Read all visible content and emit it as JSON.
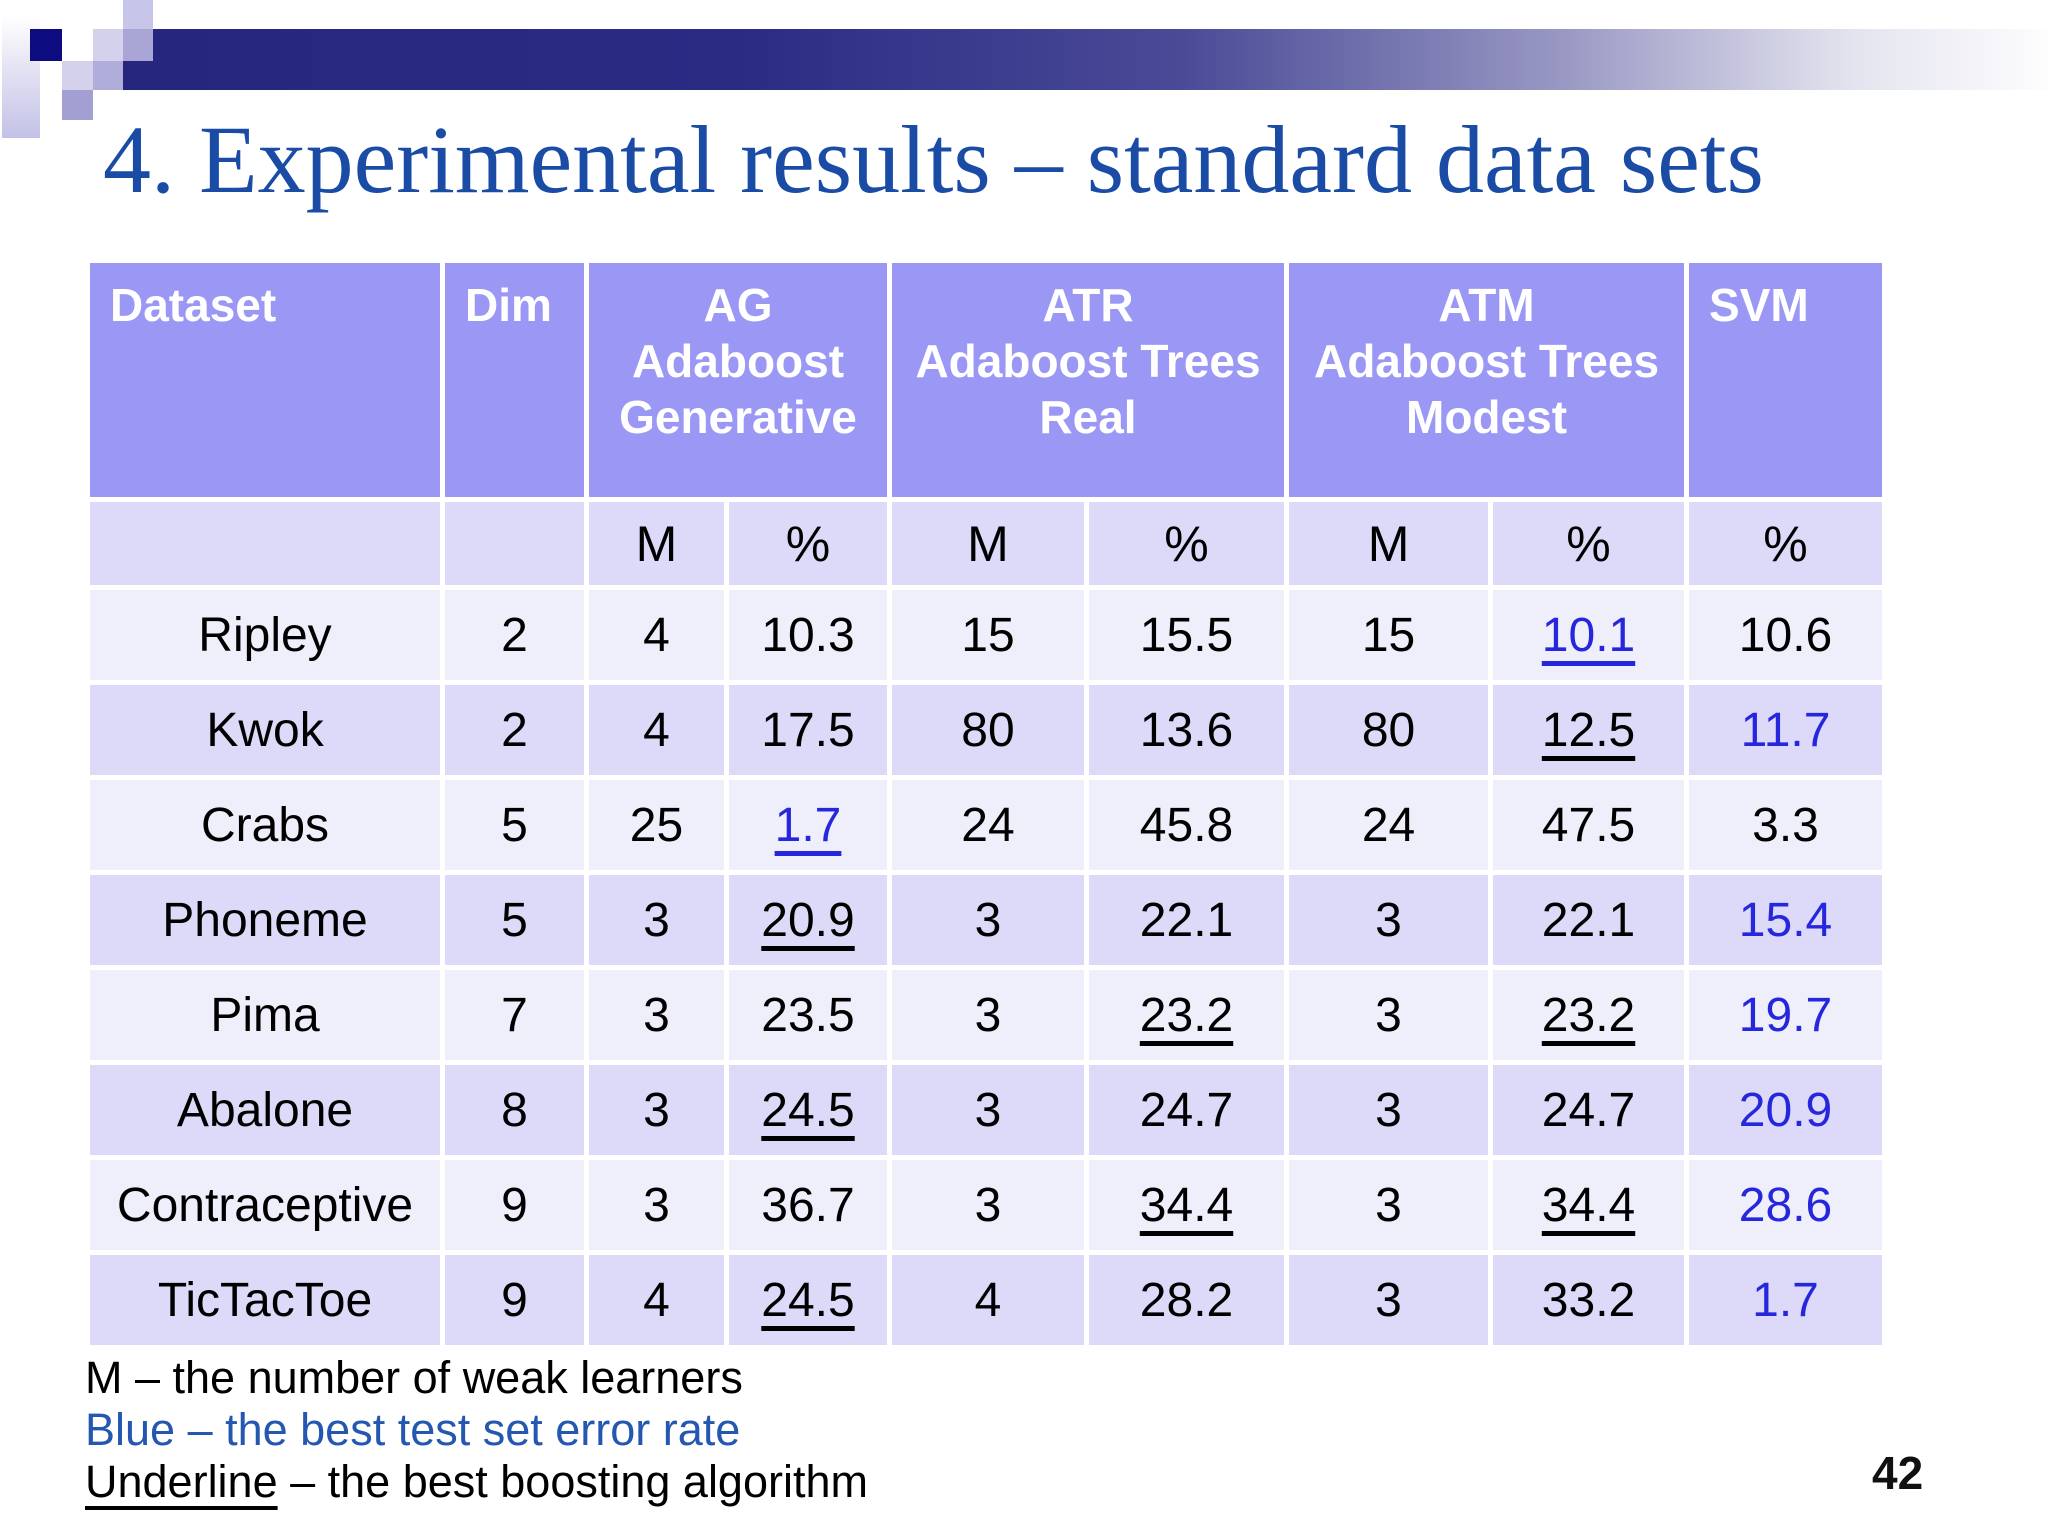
{
  "title": "4. Experimental results – standard data sets",
  "page_number": "42",
  "colors": {
    "title_blue": "#1a4ca6",
    "header_bg": "#9b98f5",
    "row_light": "#efeefb",
    "row_dark": "#dcdaf8",
    "best_value_blue": "#2626dd",
    "legend_blue": "#2457b0",
    "banner_navy": "#26267e"
  },
  "table": {
    "col_dataset": "Dataset",
    "col_dim": "Dim",
    "groups": [
      {
        "abbr": "AG",
        "name": "Adaboost Generative"
      },
      {
        "abbr": "ATR",
        "name": "Adaboost Trees Real"
      },
      {
        "abbr": "ATM",
        "name": "Adaboost Trees Modest"
      }
    ],
    "col_svm": "SVM",
    "sub_m": "M",
    "sub_pct": "%",
    "rows": [
      {
        "cells": [
          {
            "v": "Ripley"
          },
          {
            "v": "2"
          },
          {
            "v": "4"
          },
          {
            "v": "10.3"
          },
          {
            "v": "15"
          },
          {
            "v": "15.5"
          },
          {
            "v": "15"
          },
          {
            "v": "10.1",
            "blue": true,
            "underline": true
          },
          {
            "v": "10.6"
          }
        ]
      },
      {
        "cells": [
          {
            "v": "Kwok"
          },
          {
            "v": "2"
          },
          {
            "v": "4"
          },
          {
            "v": "17.5"
          },
          {
            "v": "80"
          },
          {
            "v": "13.6"
          },
          {
            "v": "80"
          },
          {
            "v": "12.5",
            "underline": true
          },
          {
            "v": "11.7",
            "blue": true
          }
        ]
      },
      {
        "cells": [
          {
            "v": "Crabs"
          },
          {
            "v": "5"
          },
          {
            "v": "25"
          },
          {
            "v": "1.7",
            "blue": true,
            "underline": true
          },
          {
            "v": "24"
          },
          {
            "v": "45.8"
          },
          {
            "v": "24"
          },
          {
            "v": "47.5"
          },
          {
            "v": "3.3"
          }
        ]
      },
      {
        "cells": [
          {
            "v": "Phoneme"
          },
          {
            "v": "5"
          },
          {
            "v": "3"
          },
          {
            "v": "20.9",
            "underline": true
          },
          {
            "v": "3"
          },
          {
            "v": "22.1"
          },
          {
            "v": "3"
          },
          {
            "v": "22.1"
          },
          {
            "v": "15.4",
            "blue": true
          }
        ]
      },
      {
        "cells": [
          {
            "v": "Pima"
          },
          {
            "v": "7"
          },
          {
            "v": "3"
          },
          {
            "v": "23.5"
          },
          {
            "v": "3"
          },
          {
            "v": "23.2",
            "underline": true
          },
          {
            "v": "3"
          },
          {
            "v": "23.2",
            "underline": true
          },
          {
            "v": "19.7",
            "blue": true
          }
        ]
      },
      {
        "cells": [
          {
            "v": "Abalone"
          },
          {
            "v": "8"
          },
          {
            "v": "3"
          },
          {
            "v": "24.5",
            "underline": true
          },
          {
            "v": "3"
          },
          {
            "v": "24.7"
          },
          {
            "v": "3"
          },
          {
            "v": "24.7"
          },
          {
            "v": "20.9",
            "blue": true
          }
        ]
      },
      {
        "cells": [
          {
            "v": "Contraceptive"
          },
          {
            "v": "9"
          },
          {
            "v": "3"
          },
          {
            "v": "36.7"
          },
          {
            "v": "3"
          },
          {
            "v": "34.4",
            "underline": true
          },
          {
            "v": "3"
          },
          {
            "v": "34.4",
            "underline": true
          },
          {
            "v": "28.6",
            "blue": true
          }
        ]
      },
      {
        "cells": [
          {
            "v": "TicTacToe"
          },
          {
            "v": "9"
          },
          {
            "v": "4"
          },
          {
            "v": "24.5",
            "underline": true
          },
          {
            "v": "4"
          },
          {
            "v": "28.2"
          },
          {
            "v": "3"
          },
          {
            "v": "33.2"
          },
          {
            "v": "1.7",
            "blue": true
          }
        ]
      }
    ]
  },
  "legend": {
    "line1": "M – the number of weak learners",
    "line2": "Blue – the best test set error rate",
    "line3_word": "Underline",
    "line3_rest": " – the best boosting algorithm"
  }
}
